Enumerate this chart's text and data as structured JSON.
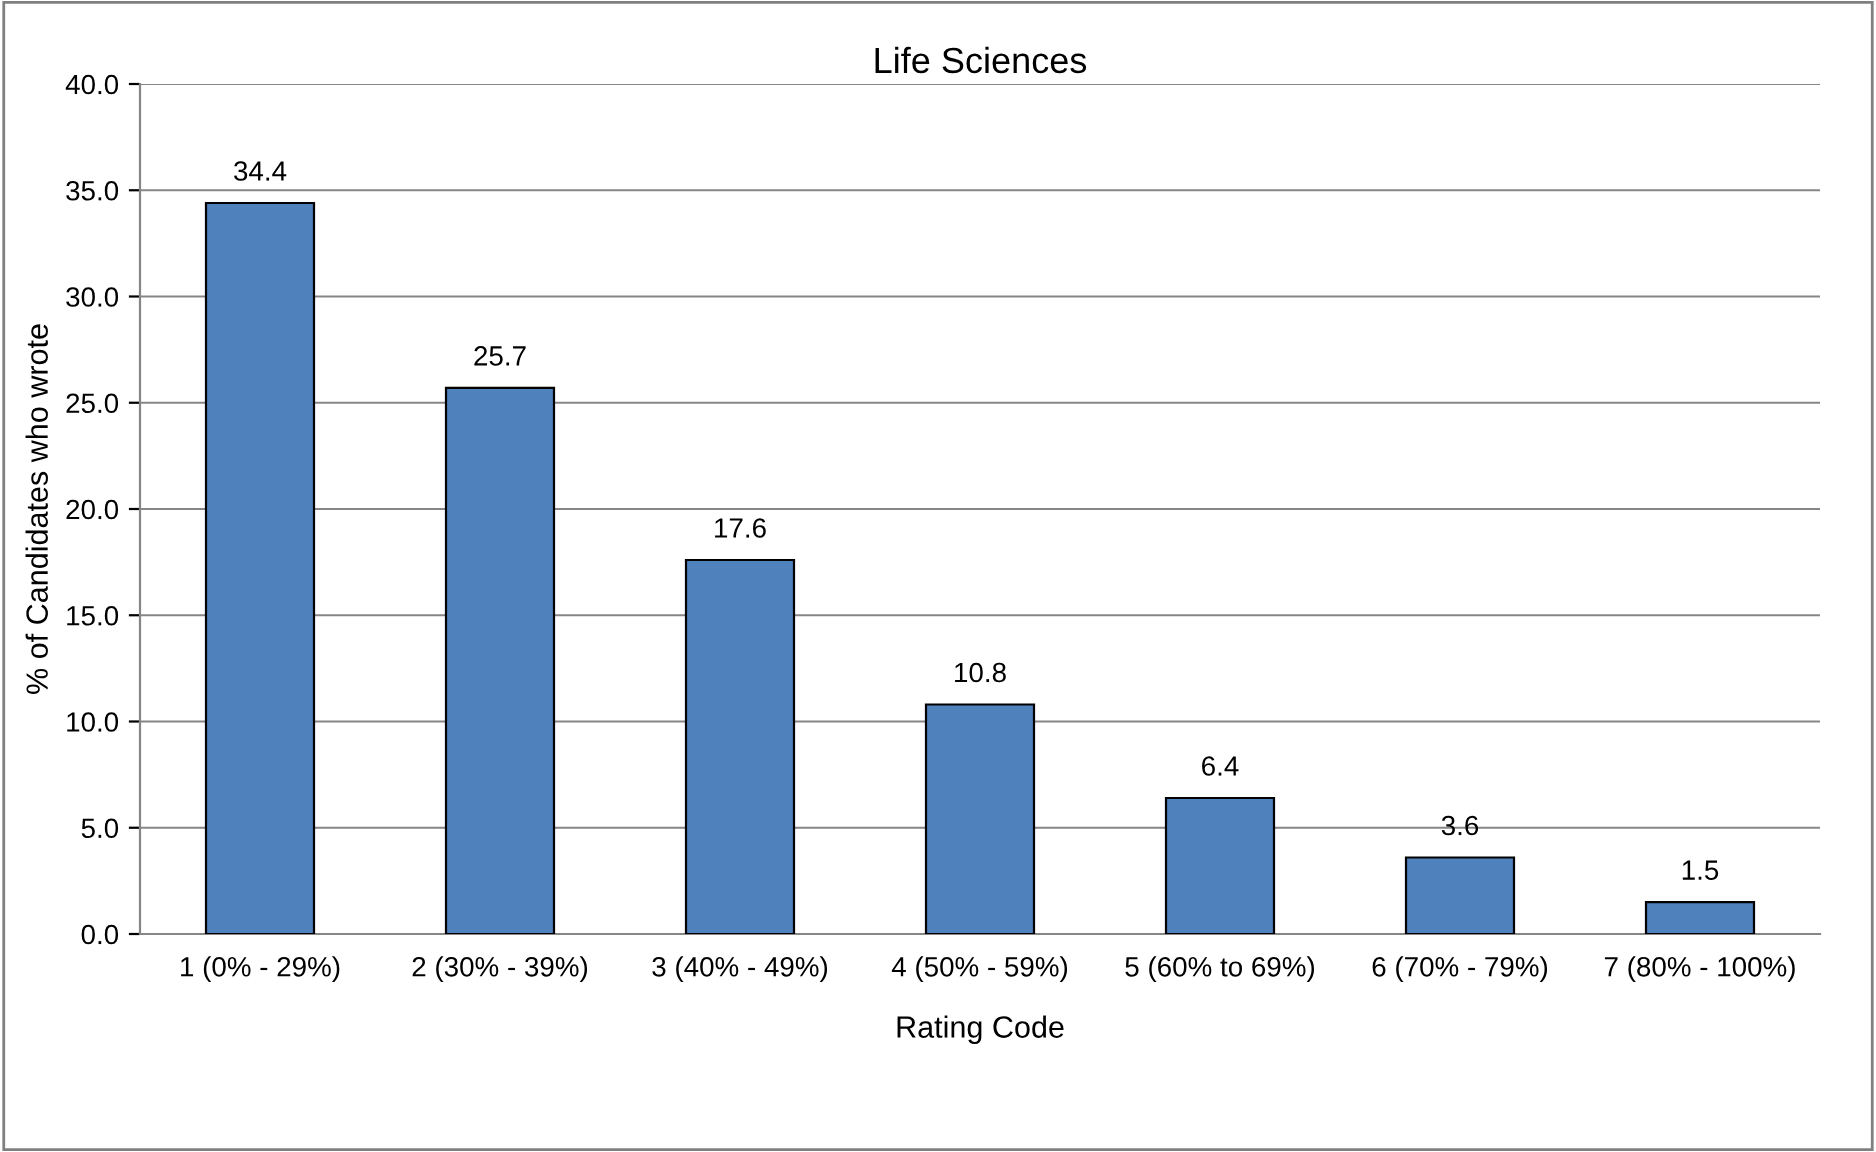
{
  "chart_data": {
    "type": "bar",
    "title": "Life Sciences",
    "xlabel": "Rating Code",
    "ylabel": "% of Candidates who wrote",
    "categories": [
      "1 (0% - 29%)",
      "2 (30% - 39%)",
      "3 (40% - 49%)",
      "4 (50% - 59%)",
      "5 (60% to 69%)",
      "6 (70% - 79%)",
      "7 (80% - 100%)"
    ],
    "values": [
      34.4,
      25.7,
      17.6,
      10.8,
      6.4,
      3.6,
      1.5
    ],
    "color": "#4f81bd",
    "ylim": [
      0,
      40
    ],
    "yticks": [
      {
        "value": 0,
        "label": "0.0"
      },
      {
        "value": 5,
        "label": "5.0"
      },
      {
        "value": 10,
        "label": "10.0"
      },
      {
        "value": 15,
        "label": "15.0"
      },
      {
        "value": 20,
        "label": "20.0"
      },
      {
        "value": 25,
        "label": "25.0"
      },
      {
        "value": 30,
        "label": "30.0"
      },
      {
        "value": 35,
        "label": "35.0"
      },
      {
        "value": 40,
        "label": "40.0"
      }
    ],
    "grid": "y",
    "data_labels": true
  }
}
